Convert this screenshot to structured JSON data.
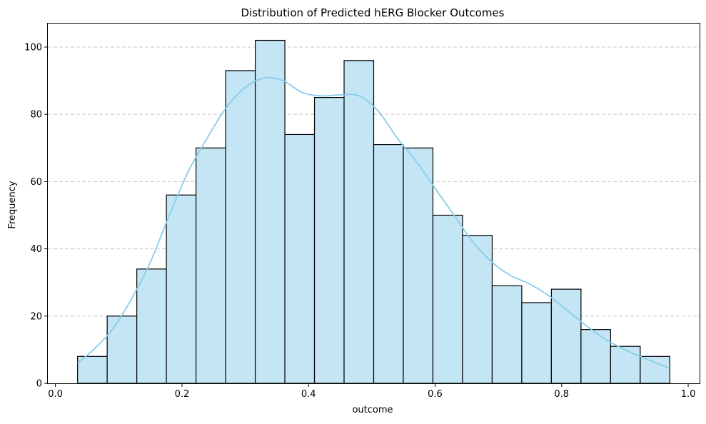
{
  "chart_data": {
    "type": "bar",
    "title": "Distribution of Predicted hERG Blocker Outcomes",
    "xlabel": "outcome",
    "ylabel": "Frequency",
    "bin_edges": [
      0.035,
      0.0818,
      0.1286,
      0.1754,
      0.2222,
      0.269,
      0.3158,
      0.3626,
      0.4094,
      0.4562,
      0.503,
      0.5498,
      0.5966,
      0.6434,
      0.6902,
      0.737,
      0.7838,
      0.8306,
      0.8774,
      0.9242,
      0.971
    ],
    "values": [
      8,
      20,
      34,
      56,
      70,
      93,
      102,
      74,
      85,
      96,
      71,
      70,
      50,
      44,
      29,
      24,
      28,
      16,
      11,
      8
    ],
    "kde": {
      "x": [
        0.035,
        0.06,
        0.09,
        0.12,
        0.15,
        0.18,
        0.21,
        0.24,
        0.27,
        0.3,
        0.33,
        0.36,
        0.39,
        0.42,
        0.45,
        0.48,
        0.51,
        0.54,
        0.57,
        0.6,
        0.63,
        0.66,
        0.69,
        0.72,
        0.75,
        0.78,
        0.81,
        0.84,
        0.87,
        0.9,
        0.93,
        0.971
      ],
      "y": [
        6,
        10,
        16,
        25,
        36,
        50,
        63,
        73,
        82,
        88,
        90.8,
        90,
        86.5,
        85.5,
        85.8,
        85.5,
        81,
        73,
        66,
        58,
        50,
        42,
        36,
        32,
        29.5,
        26,
        21.5,
        17,
        13,
        10,
        7.5,
        4.5
      ]
    },
    "xlim": [
      -0.012,
      1.018
    ],
    "ylim": [
      0,
      107
    ],
    "xticks": [
      0.0,
      0.2,
      0.4,
      0.6,
      0.8,
      1.0
    ],
    "xtick_labels": [
      "0.0",
      "0.2",
      "0.4",
      "0.6",
      "0.8",
      "1.0"
    ],
    "yticks": [
      0,
      20,
      40,
      60,
      80,
      100
    ],
    "ytick_labels": [
      "0",
      "20",
      "40",
      "60",
      "80",
      "100"
    ],
    "grid": "y-dashed",
    "colors": {
      "bar_fill": "#c3e5f4",
      "bar_edge": "#000000",
      "kde_line": "#87ceeb",
      "grid": "#c8c8c8"
    }
  }
}
